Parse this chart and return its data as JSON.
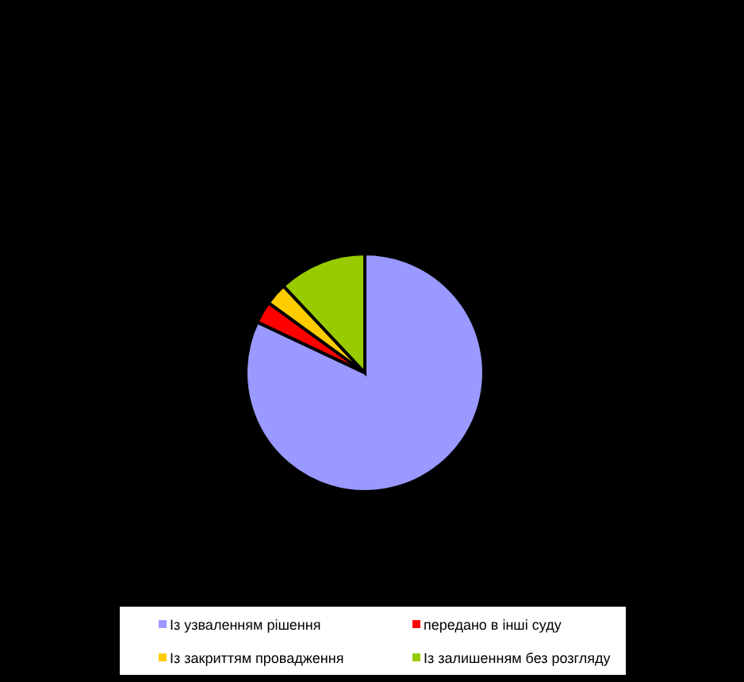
{
  "chart_data": {
    "type": "pie",
    "categories": [
      "Із узваленням рішення",
      "передано в інші суду",
      "Із закриттям провадження",
      "Із залишенням без розгляду"
    ],
    "values": [
      82,
      3,
      3,
      12
    ],
    "colors": [
      "#9999ff",
      "#ff0000",
      "#ffcc00",
      "#99cc00"
    ],
    "legend": "bottom"
  }
}
